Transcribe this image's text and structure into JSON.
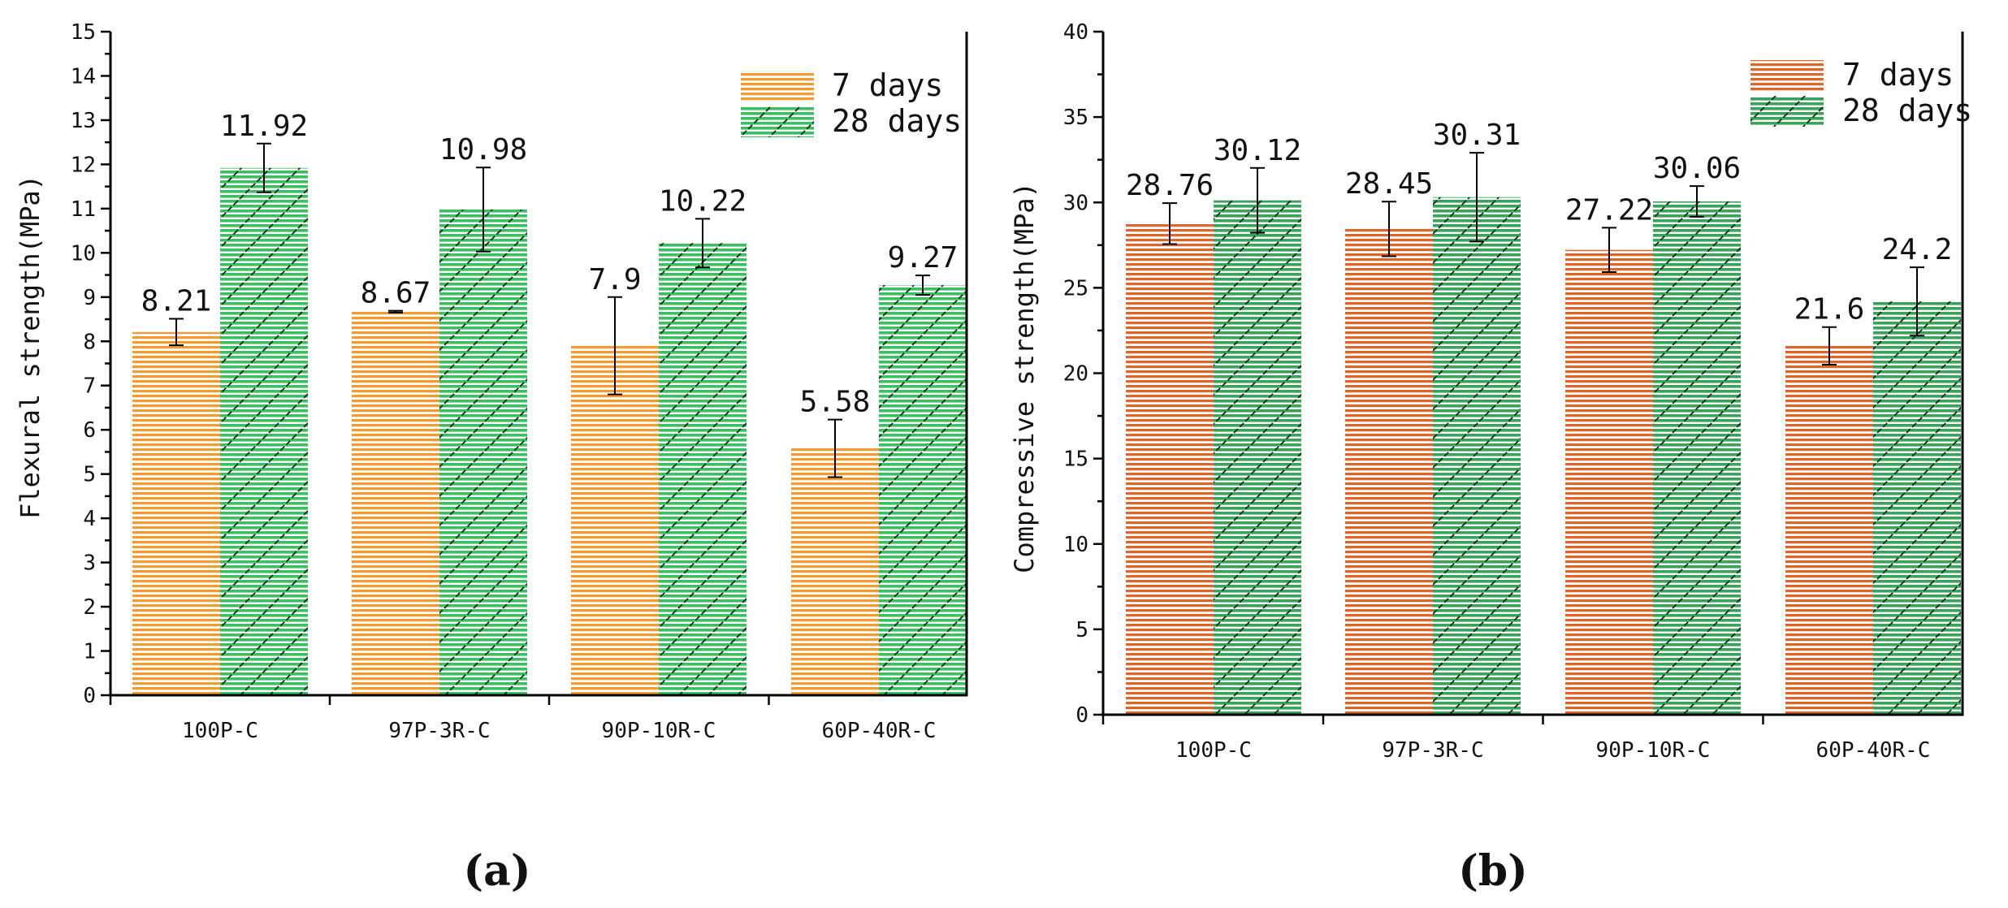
{
  "chart_data": [
    {
      "type": "bar",
      "panel_label": "(a)",
      "title": "",
      "xlabel": "",
      "ylabel": "Flexural strength(MPa)",
      "ylim": [
        0,
        15
      ],
      "yticks": [
        0,
        1,
        2,
        3,
        4,
        5,
        6,
        7,
        8,
        9,
        10,
        11,
        12,
        13,
        14,
        15
      ],
      "categories": [
        "100P-C",
        "97P-3R-C",
        "90P-10R-C",
        "60P-40R-C"
      ],
      "legend_position": "top-right",
      "series": [
        {
          "name": "7 days",
          "color": "#f39b2f",
          "values": [
            8.21,
            8.67,
            7.9,
            5.58
          ],
          "labels": [
            "8.21",
            "8.67",
            "7.9",
            "5.58"
          ],
          "errors": [
            0.3,
            0.02,
            1.1,
            0.65
          ]
        },
        {
          "name": "28 days",
          "color": "#3dbe63",
          "values": [
            11.92,
            10.98,
            10.22,
            9.27
          ],
          "labels": [
            "11.92",
            "10.98",
            "10.22",
            "9.27"
          ],
          "errors": [
            0.55,
            0.95,
            0.55,
            0.22
          ]
        }
      ]
    },
    {
      "type": "bar",
      "panel_label": "(b)",
      "title": "",
      "xlabel": "",
      "ylabel": "Compressive strength(MPa)",
      "ylim": [
        0,
        40
      ],
      "yticks": [
        0,
        5,
        10,
        15,
        20,
        25,
        30,
        35,
        40
      ],
      "categories": [
        "100P-C",
        "97P-3R-C",
        "90P-10R-C",
        "60P-40R-C"
      ],
      "legend_position": "top-right",
      "series": [
        {
          "name": "7 days",
          "color": "#e0652a",
          "values": [
            28.76,
            28.45,
            27.22,
            21.6
          ],
          "labels": [
            "28.76",
            "28.45",
            "27.22",
            "21.6"
          ],
          "errors": [
            1.2,
            1.6,
            1.3,
            1.1
          ]
        },
        {
          "name": "28 days",
          "color": "#3aa35a",
          "values": [
            30.12,
            30.31,
            30.06,
            24.2
          ],
          "labels": [
            "30.12",
            "30.31",
            "30.06",
            "24.2"
          ],
          "errors": [
            1.9,
            2.6,
            0.9,
            2.0
          ]
        }
      ]
    }
  ]
}
